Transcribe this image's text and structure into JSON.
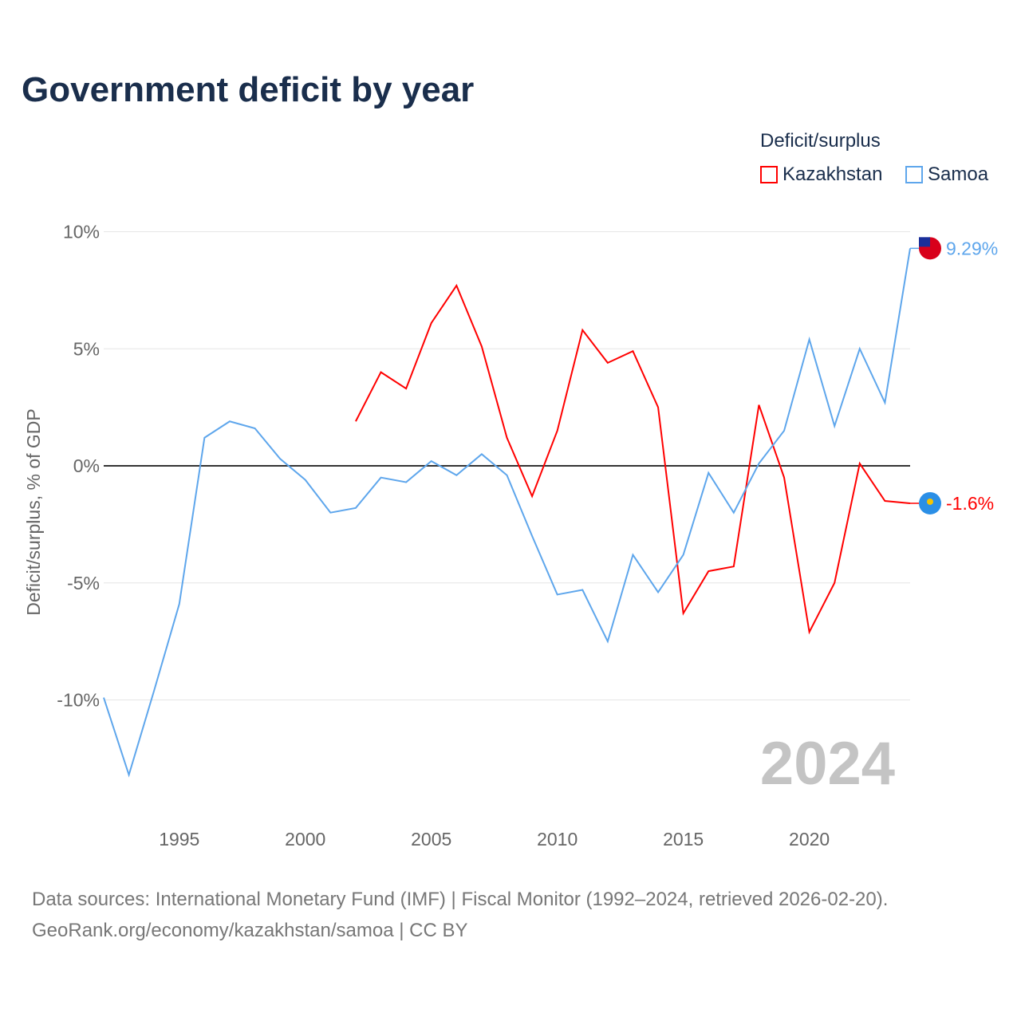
{
  "chart_data": {
    "type": "line",
    "title": "Government deficit by year",
    "ylabel": "Deficit/surplus, % of GDP",
    "xlabel": "",
    "legend_title": "Deficit/surplus",
    "legend_position": "top-right",
    "xlim": [
      1992,
      2024
    ],
    "ylim": [
      -10,
      10
    ],
    "y_ticks": [
      10,
      5,
      0,
      -5,
      -10
    ],
    "y_tick_labels": [
      "10%",
      "5%",
      "0%",
      "-5%",
      "-10%"
    ],
    "x_ticks": [
      1995,
      2000,
      2005,
      2010,
      2015,
      2020
    ],
    "x_tick_labels": [
      "1995",
      "2000",
      "2005",
      "2010",
      "2015",
      "2020"
    ],
    "year_label": "2024",
    "series": [
      {
        "name": "Kazakhstan",
        "color": "#ff0000",
        "end_label": "-1.6%",
        "x": [
          2002,
          2003,
          2004,
          2005,
          2006,
          2007,
          2008,
          2009,
          2010,
          2011,
          2012,
          2013,
          2014,
          2015,
          2016,
          2017,
          2018,
          2019,
          2020,
          2021,
          2022,
          2023,
          2024
        ],
        "values": [
          1.9,
          4.0,
          3.3,
          6.1,
          7.7,
          5.1,
          1.2,
          -1.3,
          1.5,
          5.8,
          4.4,
          4.9,
          2.5,
          -6.3,
          -4.5,
          -4.3,
          2.6,
          -0.5,
          -7.1,
          -5.0,
          0.1,
          -1.5,
          -1.6
        ]
      },
      {
        "name": "Samoa",
        "color": "#5ea6ec",
        "end_label": "9.29%",
        "x": [
          1992,
          1993,
          1994,
          1995,
          1996,
          1997,
          1998,
          1999,
          2000,
          2001,
          2002,
          2003,
          2004,
          2005,
          2006,
          2007,
          2008,
          2009,
          2010,
          2011,
          2012,
          2013,
          2014,
          2015,
          2016,
          2017,
          2018,
          2019,
          2020,
          2021,
          2022,
          2023,
          2024
        ],
        "values": [
          -9.9,
          -13.2,
          -9.6,
          -5.9,
          1.2,
          1.9,
          1.6,
          0.3,
          -0.6,
          -2.0,
          -1.8,
          -0.5,
          -0.7,
          0.2,
          -0.4,
          0.5,
          -0.4,
          -3.0,
          -5.5,
          -5.3,
          -7.5,
          -3.8,
          -5.4,
          -3.8,
          -0.3,
          -2.0,
          0.1,
          1.5,
          5.4,
          1.7,
          5.0,
          2.7,
          9.29
        ]
      }
    ]
  },
  "source_lines": [
    "Data sources: International Monetary Fund (IMF) | Fiscal Monitor (1992–2024, retrieved 2026-02-20).",
    "GeoRank.org/economy/kazakhstan/samoa | CC BY"
  ]
}
